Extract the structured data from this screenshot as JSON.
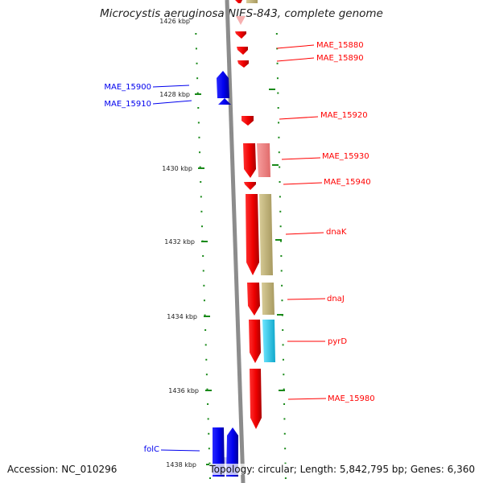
{
  "title": "Microcystis aeruginosa NIES-843, complete genome",
  "top_partial_tick": "1426 kbp",
  "ticks": [
    {
      "label": "1428 kbp"
    },
    {
      "label": "1430 kbp"
    },
    {
      "label": "1432 kbp"
    },
    {
      "label": "1434 kbp"
    },
    {
      "label": "1436 kbp"
    },
    {
      "label": "1438 kbp"
    }
  ],
  "genes": [
    {
      "label": "MAE_15880",
      "strand": "plus"
    },
    {
      "label": "MAE_15890",
      "strand": "plus"
    },
    {
      "label": "MAE_15900",
      "strand": "minus"
    },
    {
      "label": "MAE_15910",
      "strand": "minus"
    },
    {
      "label": "MAE_15920",
      "strand": "plus"
    },
    {
      "label": "MAE_15930",
      "strand": "plus"
    },
    {
      "label": "MAE_15940",
      "strand": "plus"
    },
    {
      "label": "dnaK",
      "strand": "plus"
    },
    {
      "label": "dnaJ",
      "strand": "plus"
    },
    {
      "label": "pyrD",
      "strand": "plus"
    },
    {
      "label": "MAE_15980",
      "strand": "plus"
    },
    {
      "label": "folC",
      "strand": "minus"
    }
  ],
  "colors": {
    "plus_strand": "#ff0000",
    "minus_strand": "#0000ee",
    "backbone": "#8c8c8c",
    "tick": "#1a8a1a",
    "cog_khaki": "#c8bb84",
    "cog_pink": "#f08080",
    "cog_cyan": "#22ccee",
    "cog_pale": "#c9c9ee"
  },
  "footer": {
    "accession": "Accession: NC_010296",
    "summary": "Topology: circular; Length: 5,842,795 bp; Genes: 6,360"
  }
}
